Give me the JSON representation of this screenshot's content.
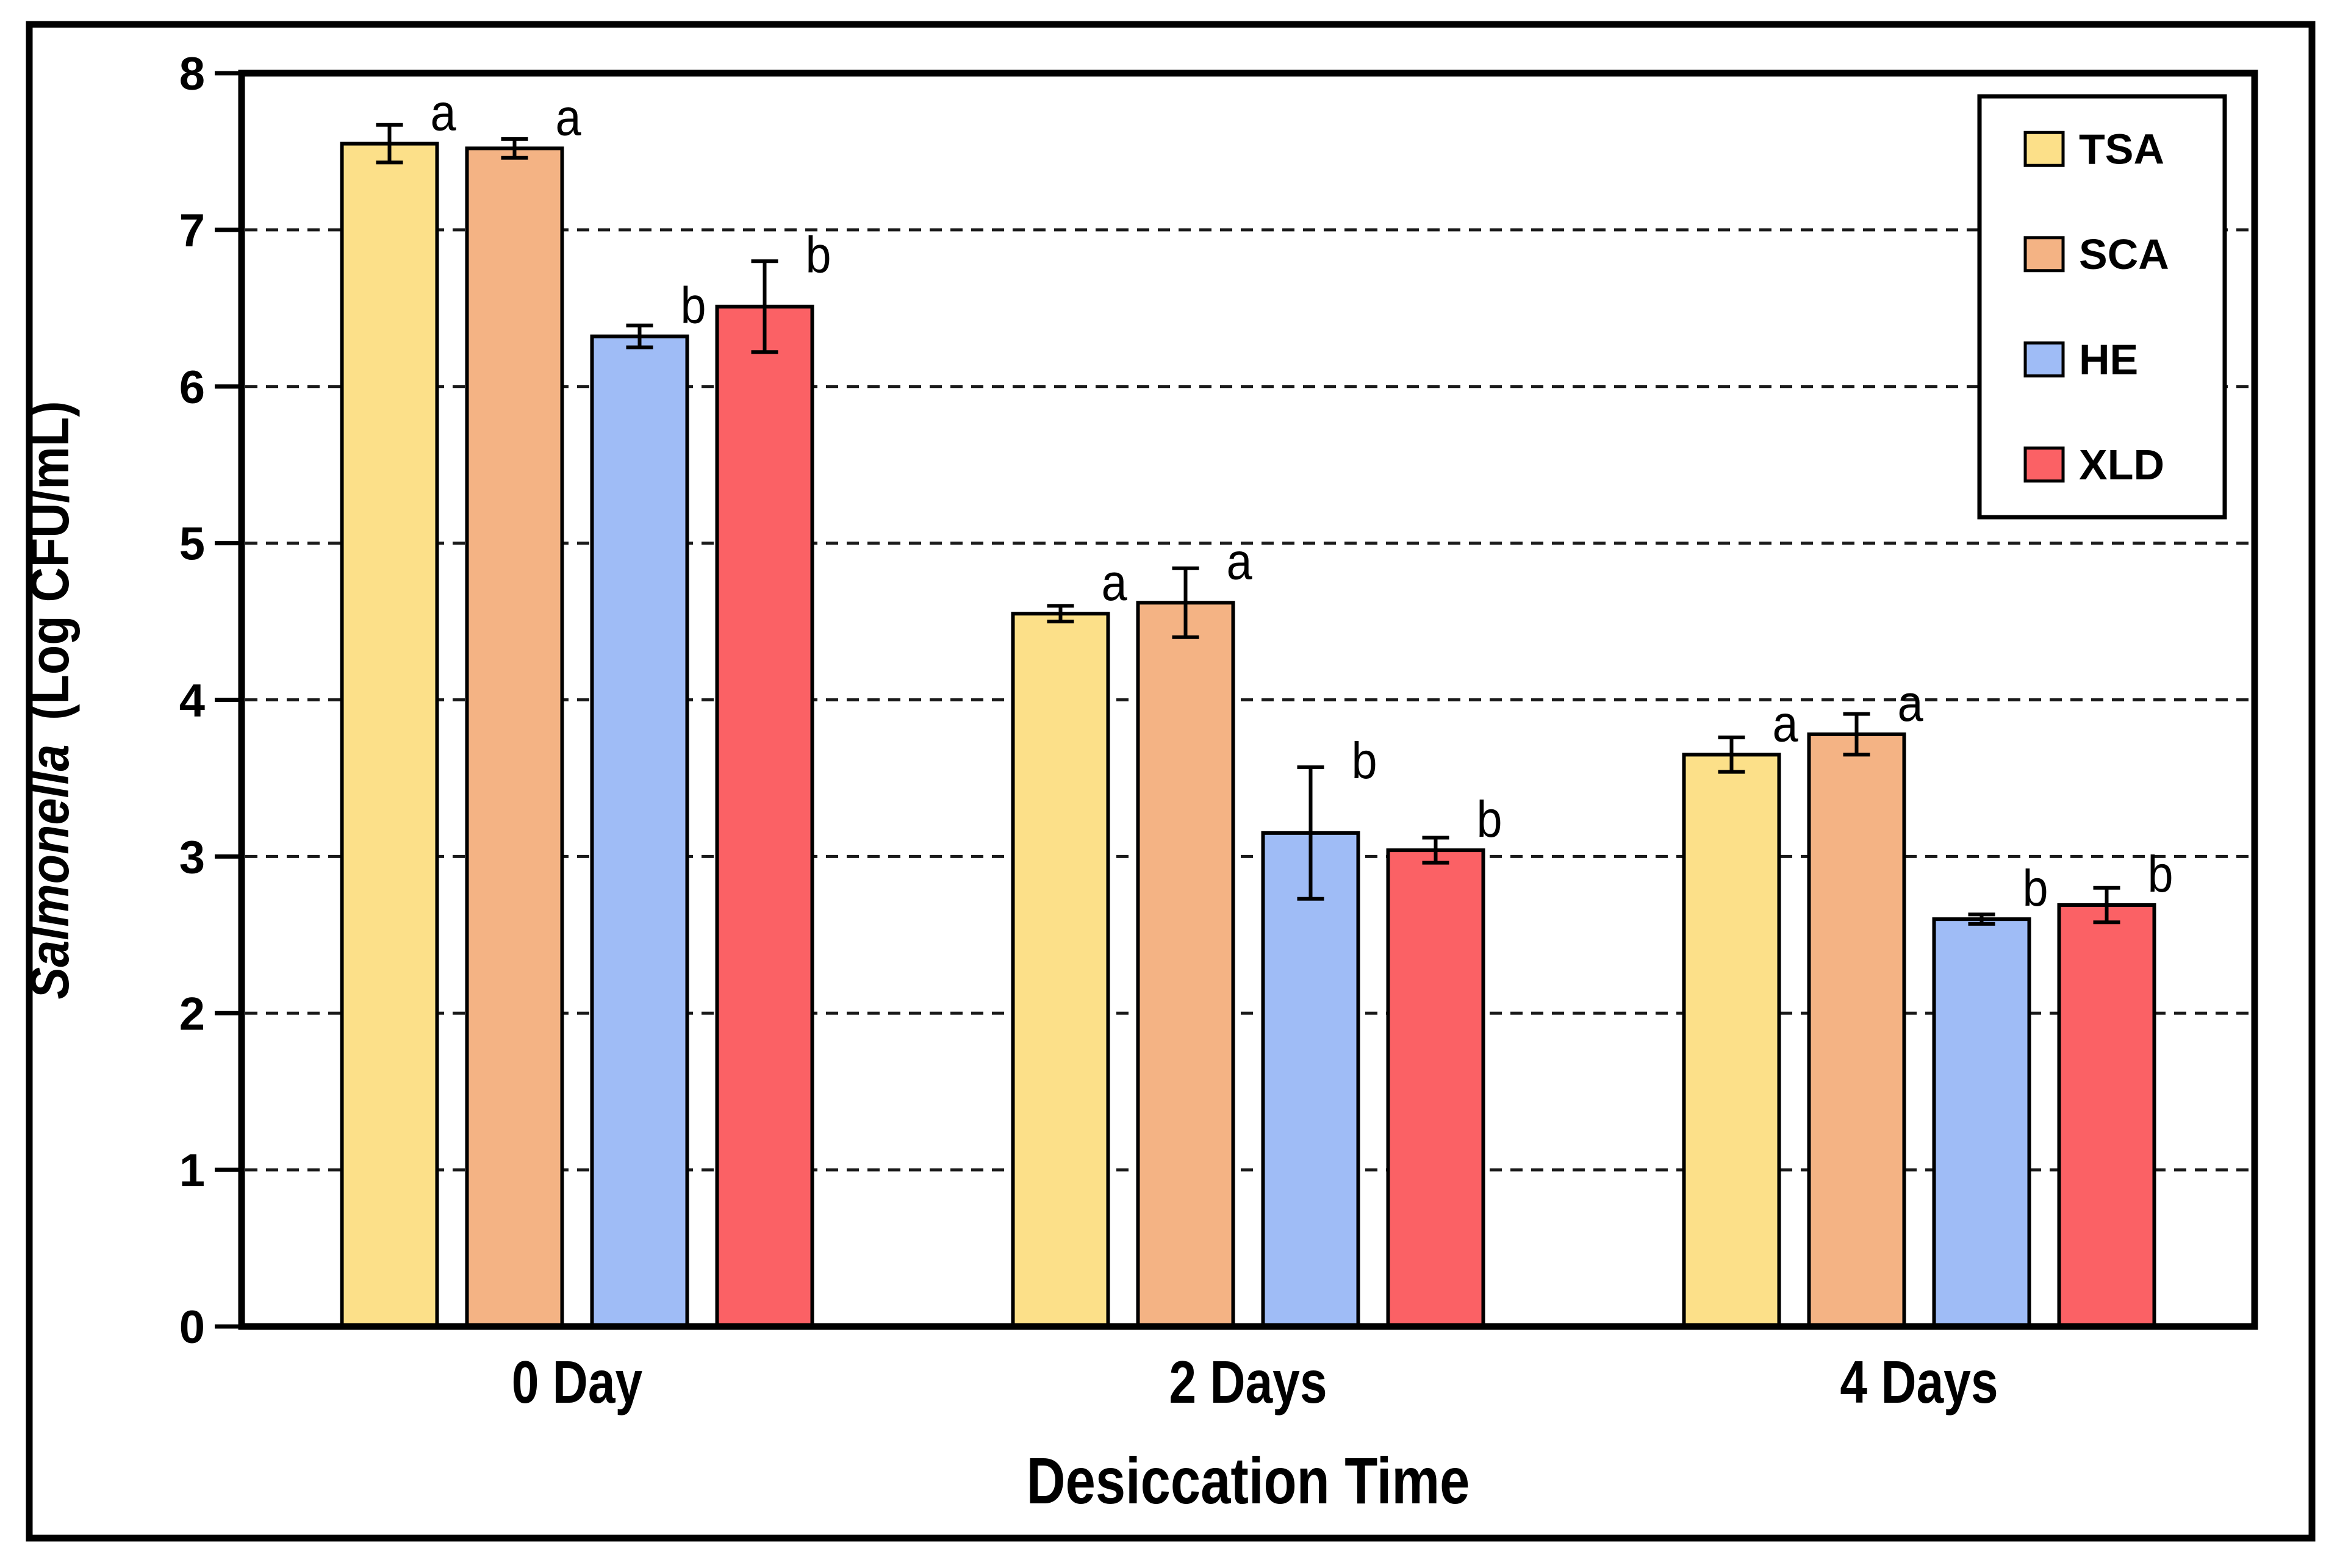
{
  "figure": {
    "background": "#ffffff",
    "border_color": "#000000"
  },
  "y_axis": {
    "label_italic": "Salmonella",
    "label_rest": "(Log CFU/mL)",
    "min": 0,
    "max": 8,
    "tick_step": 1,
    "tick_labels": [
      "0",
      "1",
      "2",
      "3",
      "4",
      "5",
      "6",
      "7",
      "8"
    ]
  },
  "x_axis": {
    "label": "Desiccation Time",
    "categories": [
      "0 Day",
      "2 Days",
      "4 Days"
    ]
  },
  "legend": {
    "position": "upper-right-inside-plot",
    "border_color": "#000000",
    "background": "#ffffff"
  },
  "chart_data": {
    "type": "bar",
    "title": "",
    "xlabel": "Desiccation Time",
    "ylabel": "Salmonella (Log CFU/mL)",
    "categories": [
      "0 Day",
      "2 Days",
      "4 Days"
    ],
    "ylim": [
      0,
      8
    ],
    "grid": "horizontal dashed gridlines at every integer",
    "legend_position": "upper right inside plot area",
    "error_bars": "symmetric with caps",
    "series": [
      {
        "name": "TSA",
        "color": "#FCE089",
        "values": [
          7.55,
          4.55,
          3.65
        ],
        "errors": [
          0.12,
          0.05,
          0.11
        ],
        "sig_letters": [
          "a",
          "a",
          "a"
        ]
      },
      {
        "name": "SCA",
        "color": "#F4B384",
        "values": [
          7.52,
          4.62,
          3.78
        ],
        "errors": [
          0.06,
          0.22,
          0.13
        ],
        "sig_letters": [
          "a",
          "a",
          "a"
        ]
      },
      {
        "name": "HE",
        "color": "#9FBCF6",
        "values": [
          6.32,
          3.15,
          2.6
        ],
        "errors": [
          0.07,
          0.42,
          0.03
        ],
        "sig_letters": [
          "b",
          "b",
          "b"
        ]
      },
      {
        "name": "XLD",
        "color": "#FB6165",
        "values": [
          6.51,
          3.04,
          2.69
        ],
        "errors": [
          0.29,
          0.08,
          0.11
        ],
        "sig_letters": [
          "b",
          "b",
          "b"
        ]
      }
    ]
  }
}
